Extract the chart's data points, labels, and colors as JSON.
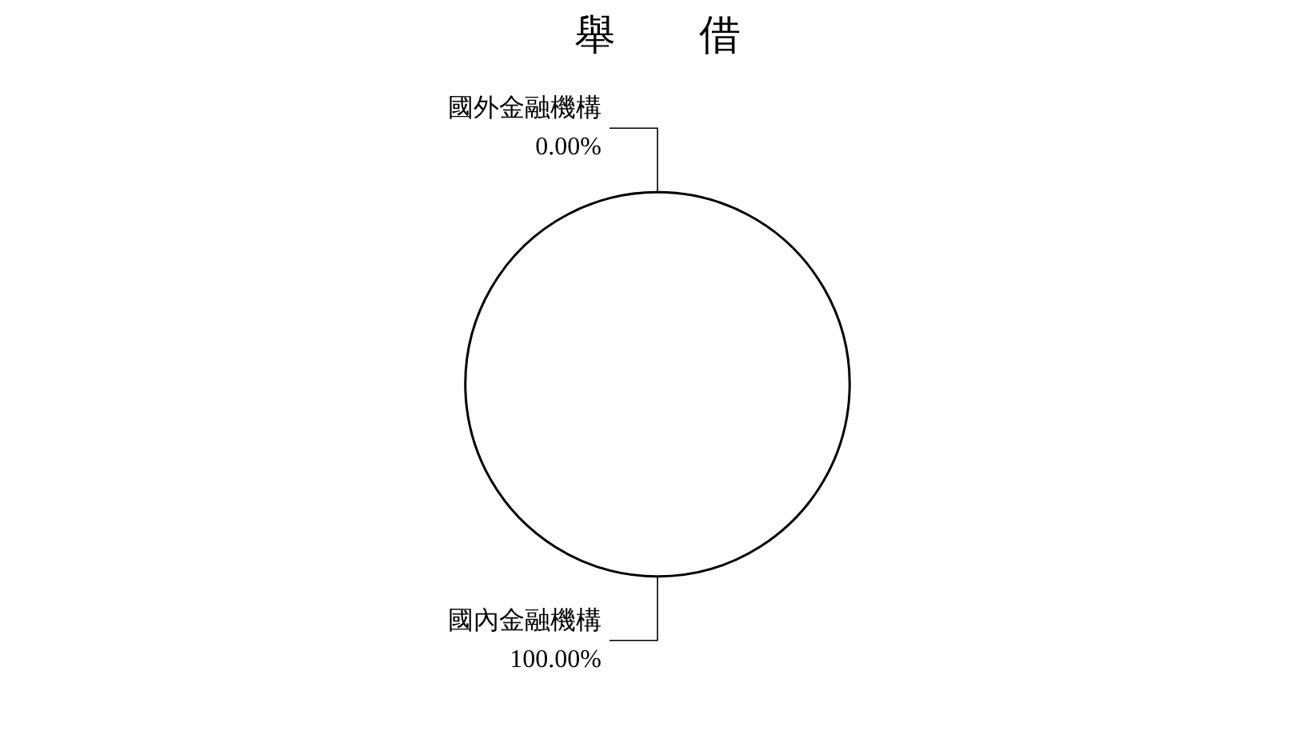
{
  "chart_data": {
    "type": "pie",
    "title": "舉　　借",
    "categories": [
      "國外金融機構",
      "國內金融機構"
    ],
    "values": [
      0,
      100
    ],
    "colors": [
      "#ffffff",
      "#ffffff"
    ],
    "value_labels": [
      "0.00%",
      "100.00%"
    ],
    "legend": false
  }
}
